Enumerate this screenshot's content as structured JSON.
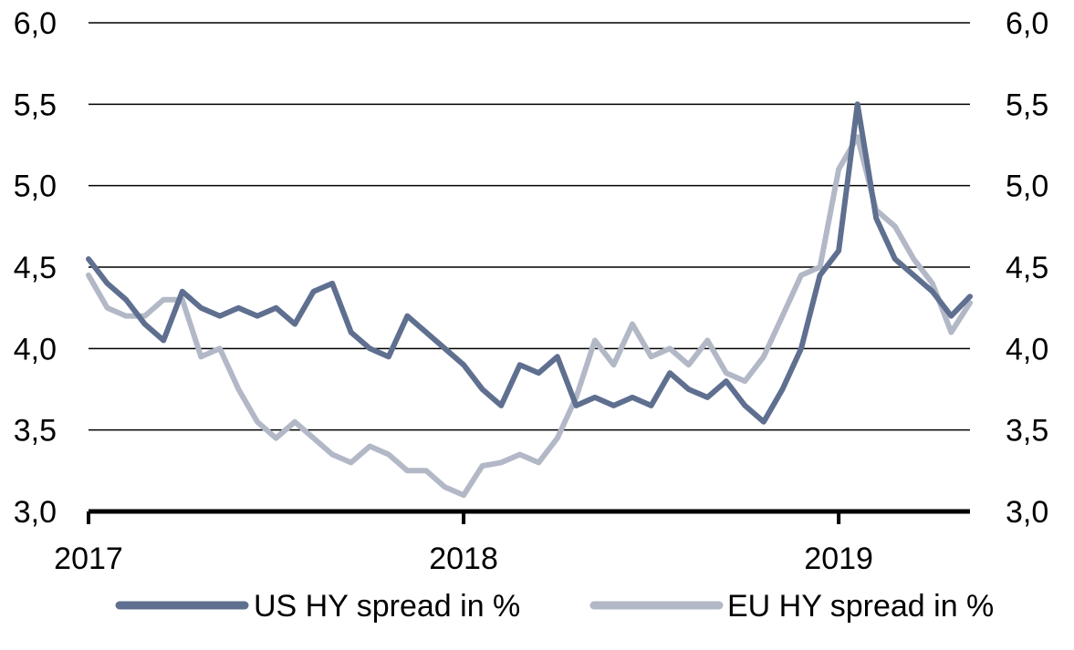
{
  "chart_data": {
    "type": "line",
    "title": "",
    "xlabel": "",
    "ylabel": "",
    "ylim": [
      3.0,
      6.0
    ],
    "y_ticks": [
      "3,0",
      "3,5",
      "4,0",
      "4,5",
      "5,0",
      "5,5",
      "6,0"
    ],
    "y_tick_values": [
      3.0,
      3.5,
      4.0,
      4.5,
      5.0,
      5.5,
      6.0
    ],
    "xlim": [
      2017.0,
      2019.35
    ],
    "x_ticks": [
      "2017",
      "2018",
      "2019"
    ],
    "x_tick_values": [
      2017.0,
      2018.0,
      2019.0
    ],
    "grid": "horizontal",
    "legend_position": "bottom",
    "x": [
      2017.0,
      2017.05,
      2017.1,
      2017.15,
      2017.2,
      2017.25,
      2017.3,
      2017.35,
      2017.4,
      2017.45,
      2017.5,
      2017.55,
      2017.6,
      2017.65,
      2017.7,
      2017.75,
      2017.8,
      2017.85,
      2017.9,
      2017.95,
      2018.0,
      2018.05,
      2018.1,
      2018.15,
      2018.2,
      2018.25,
      2018.3,
      2018.35,
      2018.4,
      2018.45,
      2018.5,
      2018.55,
      2018.6,
      2018.65,
      2018.7,
      2018.75,
      2018.8,
      2018.85,
      2018.9,
      2018.95,
      2019.0,
      2019.05,
      2019.1,
      2019.15,
      2019.2,
      2019.25,
      2019.3,
      2019.35
    ],
    "series": [
      {
        "name": "US HY spread in %",
        "color": "#5f6f8f",
        "values": [
          4.55,
          4.4,
          4.3,
          4.15,
          4.05,
          4.35,
          4.25,
          4.2,
          4.25,
          4.2,
          4.25,
          4.15,
          4.35,
          4.4,
          4.1,
          4.0,
          3.95,
          4.2,
          4.1,
          4.0,
          3.9,
          3.75,
          3.65,
          3.9,
          3.85,
          3.95,
          3.65,
          3.7,
          3.65,
          3.7,
          3.65,
          3.85,
          3.75,
          3.7,
          3.8,
          3.65,
          3.55,
          3.75,
          4.0,
          4.45,
          4.6,
          5.5,
          4.8,
          4.55,
          4.45,
          4.35,
          4.2,
          4.32
        ]
      },
      {
        "name": "EU HY spread in %",
        "color": "#b2b8c6",
        "values": [
          4.45,
          4.25,
          4.2,
          4.2,
          4.3,
          4.3,
          3.95,
          4.0,
          3.75,
          3.55,
          3.45,
          3.55,
          3.45,
          3.35,
          3.3,
          3.4,
          3.35,
          3.25,
          3.25,
          3.15,
          3.1,
          3.28,
          3.3,
          3.35,
          3.3,
          3.45,
          3.7,
          4.05,
          3.9,
          4.15,
          3.95,
          4.0,
          3.9,
          4.05,
          3.85,
          3.8,
          3.95,
          4.2,
          4.45,
          4.5,
          5.1,
          5.3,
          4.85,
          4.75,
          4.55,
          4.4,
          4.1,
          4.28
        ]
      }
    ]
  }
}
